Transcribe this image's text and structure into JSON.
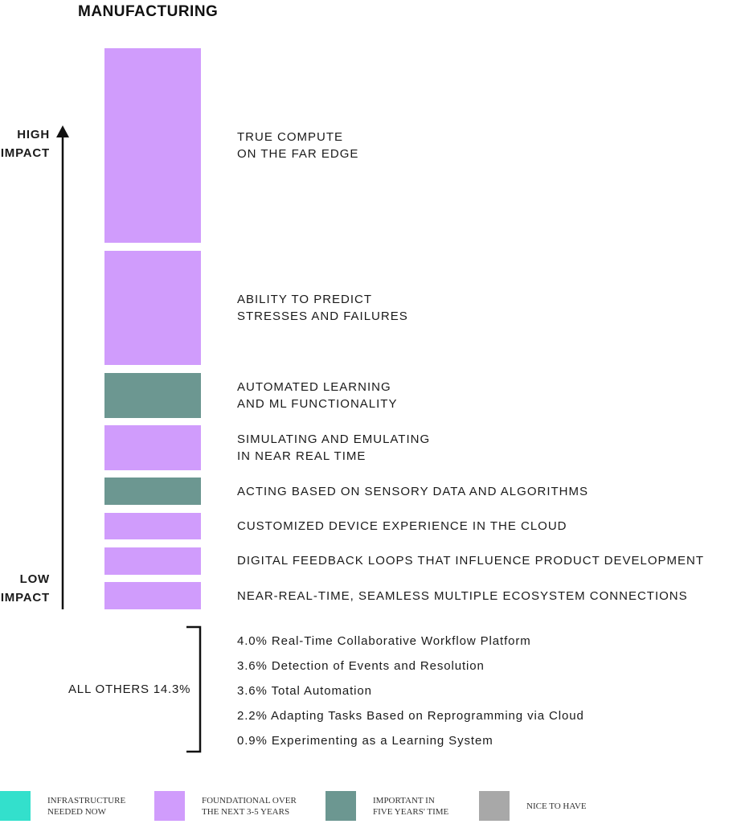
{
  "chart_data": {
    "type": "bar",
    "title": "MANUFACTURING",
    "axis": {
      "high_label": "HIGH\nIMPACT",
      "low_label": "LOW\nIMPACT"
    },
    "categories": [
      "TRUE COMPUTE\nON THE FAR EDGE",
      "ABILITY TO PREDICT\nSTRESSES AND FAILURES",
      "AUTOMATED LEARNING\nAND ML FUNCTIONALITY",
      "SIMULATING AND EMULATING\nIN NEAR REAL TIME",
      "ACTING BASED ON SENSORY DATA AND ALGORITHMS",
      "CUSTOMIZED DEVICE EXPERIENCE IN THE CLOUD",
      "DIGITAL FEEDBACK LOOPS THAT INFLUENCE PRODUCT DEVELOPMENT",
      "NEAR-REAL-TIME, SEAMLESS MULTIPLE ECOSYSTEM CONNECTIONS"
    ],
    "values": [
      24.4,
      14.4,
      5.6,
      5.6,
      3.4,
      3.4,
      3.4,
      3.4
    ],
    "groups": [
      "FOUNDATIONAL OVER THE NEXT 3-5 YEARS",
      "FOUNDATIONAL OVER THE NEXT 3-5 YEARS",
      "IMPORTANT IN FIVE YEARS' TIME",
      "FOUNDATIONAL OVER THE NEXT 3-5 YEARS",
      "IMPORTANT IN FIVE YEARS' TIME",
      "FOUNDATIONAL OVER THE NEXT 3-5 YEARS",
      "FOUNDATIONAL OVER THE NEXT 3-5 YEARS",
      "FOUNDATIONAL OVER THE NEXT 3-5 YEARS"
    ],
    "others": {
      "label": "ALL OTHERS 14.3%",
      "items": [
        "4.0% Real-Time Collaborative Workflow Platform",
        "3.6% Detection of Events and Resolution",
        "3.6% Total Automation",
        "2.2% Adapting Tasks Based on Reprogramming via Cloud",
        "0.9% Experimenting as a Learning System"
      ]
    },
    "legend": [
      {
        "label": "INFRASTRUCTURE\nNEEDED NOW",
        "color": "#33e0cc"
      },
      {
        "label": "FOUNDATIONAL OVER\nTHE NEXT 3-5 YEARS",
        "color": "#d09cfc"
      },
      {
        "label": "IMPORTANT IN\nFIVE YEARS' TIME",
        "color": "#6c9791"
      },
      {
        "label": "NICE TO HAVE",
        "color": "#a8a8a8"
      }
    ]
  }
}
